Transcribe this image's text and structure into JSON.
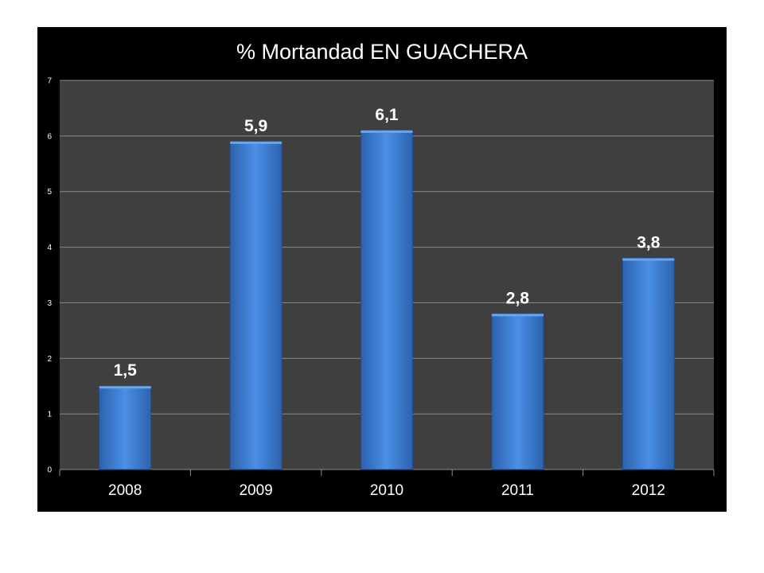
{
  "chart_data": {
    "type": "bar",
    "title": "% Mortandad EN GUACHERA",
    "categories": [
      "2008",
      "2009",
      "2010",
      "2011",
      "2012"
    ],
    "values": [
      1.5,
      5.9,
      6.1,
      2.8,
      3.8
    ],
    "value_labels": [
      "1,5",
      "5,9",
      "6,1",
      "2,8",
      "3,8"
    ],
    "y_ticks": [
      "0",
      "1",
      "2",
      "3",
      "4",
      "5",
      "6",
      "7"
    ],
    "ylim": [
      0,
      7
    ],
    "grid": true,
    "legend": "none",
    "colors": {
      "background": "#000000",
      "plot_area": "#3f3f3f",
      "gridline": "#8c8c8c",
      "bar_top": "#4a8fe6",
      "bar_bottom": "#2a5ea8",
      "text": "#ffffff"
    }
  }
}
